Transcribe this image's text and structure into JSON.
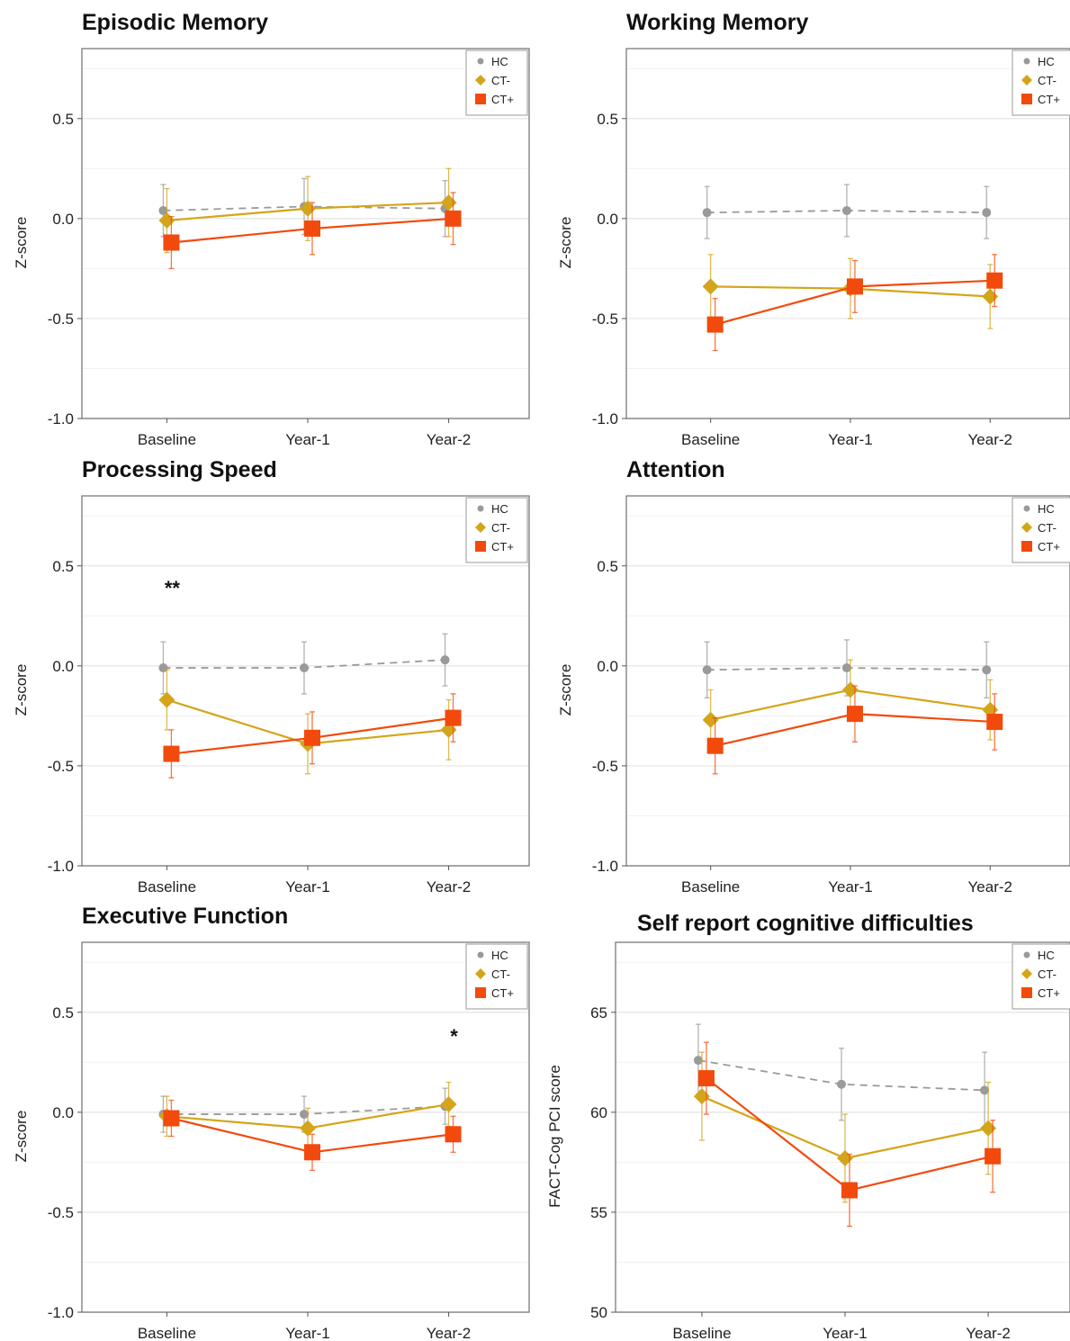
{
  "colors": {
    "HC": "#9a9a9a",
    "CT-": "#d4a51a",
    "CT+": "#f24a0c"
  },
  "legend": [
    "HC",
    "CT-",
    "CT+"
  ],
  "chart_data": [
    {
      "type": "line",
      "title": "Episodic Memory",
      "ylabel": "Z-score",
      "categories": [
        "Baseline",
        "Year-1",
        "Year-2"
      ],
      "ylim": [
        -1.0,
        0.85
      ],
      "yticks": [
        -1.0,
        -0.5,
        0.0,
        0.5
      ],
      "ytick_labels": [
        "-1.0",
        "-0.5",
        "0.0",
        "0.5"
      ],
      "series": [
        {
          "name": "HC",
          "values": [
            0.04,
            0.06,
            0.05
          ],
          "err": [
            0.13,
            0.14,
            0.14
          ]
        },
        {
          "name": "CT-",
          "values": [
            -0.01,
            0.05,
            0.08
          ],
          "err": [
            0.16,
            0.16,
            0.17
          ]
        },
        {
          "name": "CT+",
          "values": [
            -0.12,
            -0.05,
            0.0
          ],
          "err": [
            0.13,
            0.13,
            0.13
          ]
        }
      ],
      "annotations": []
    },
    {
      "type": "line",
      "title": "Working Memory",
      "ylabel": "Z-score",
      "categories": [
        "Baseline",
        "Year-1",
        "Year-2"
      ],
      "ylim": [
        -1.0,
        0.85
      ],
      "yticks": [
        -1.0,
        -0.5,
        0.0,
        0.5
      ],
      "ytick_labels": [
        "-1.0",
        "-0.5",
        "0.0",
        "0.5"
      ],
      "series": [
        {
          "name": "HC",
          "values": [
            0.03,
            0.04,
            0.03
          ],
          "err": [
            0.13,
            0.13,
            0.13
          ]
        },
        {
          "name": "CT-",
          "values": [
            -0.34,
            -0.35,
            -0.39
          ],
          "err": [
            0.16,
            0.15,
            0.16
          ]
        },
        {
          "name": "CT+",
          "values": [
            -0.53,
            -0.34,
            -0.31
          ],
          "err": [
            0.13,
            0.13,
            0.13
          ]
        }
      ],
      "annotations": []
    },
    {
      "type": "line",
      "title": "Processing Speed",
      "ylabel": "Z-score",
      "categories": [
        "Baseline",
        "Year-1",
        "Year-2"
      ],
      "ylim": [
        -1.0,
        0.85
      ],
      "yticks": [
        -1.0,
        -0.5,
        0.0,
        0.5
      ],
      "ytick_labels": [
        "-1.0",
        "-0.5",
        "0.0",
        "0.5"
      ],
      "series": [
        {
          "name": "HC",
          "values": [
            -0.01,
            -0.01,
            0.03
          ],
          "err": [
            0.13,
            0.13,
            0.13
          ]
        },
        {
          "name": "CT-",
          "values": [
            -0.17,
            -0.39,
            -0.32
          ],
          "err": [
            0.15,
            0.15,
            0.15
          ]
        },
        {
          "name": "CT+",
          "values": [
            -0.44,
            -0.36,
            -0.26
          ],
          "err": [
            0.12,
            0.13,
            0.12
          ]
        }
      ],
      "annotations": [
        {
          "text": "**",
          "x": "Baseline",
          "y": 0.41
        }
      ]
    },
    {
      "type": "line",
      "title": "Attention",
      "ylabel": "Z-score",
      "categories": [
        "Baseline",
        "Year-1",
        "Year-2"
      ],
      "ylim": [
        -1.0,
        0.85
      ],
      "yticks": [
        -1.0,
        -0.5,
        0.0,
        0.5
      ],
      "ytick_labels": [
        "-1.0",
        "-0.5",
        "0.0",
        "0.5"
      ],
      "series": [
        {
          "name": "HC",
          "values": [
            -0.02,
            -0.01,
            -0.02
          ],
          "err": [
            0.14,
            0.14,
            0.14
          ]
        },
        {
          "name": "CT-",
          "values": [
            -0.27,
            -0.12,
            -0.22
          ],
          "err": [
            0.15,
            0.15,
            0.15
          ]
        },
        {
          "name": "CT+",
          "values": [
            -0.4,
            -0.24,
            -0.28
          ],
          "err": [
            0.14,
            0.14,
            0.14
          ]
        }
      ],
      "annotations": []
    },
    {
      "type": "line",
      "title": "Executive Function",
      "ylabel": "Z-score",
      "categories": [
        "Baseline",
        "Year-1",
        "Year-2"
      ],
      "ylim": [
        -1.0,
        0.85
      ],
      "yticks": [
        -1.0,
        -0.5,
        0.0,
        0.5
      ],
      "ytick_labels": [
        "-1.0",
        "-0.5",
        "0.0",
        "0.5"
      ],
      "series": [
        {
          "name": "HC",
          "values": [
            -0.01,
            -0.01,
            0.03
          ],
          "err": [
            0.09,
            0.09,
            0.09
          ]
        },
        {
          "name": "CT-",
          "values": [
            -0.02,
            -0.08,
            0.04
          ],
          "err": [
            0.1,
            0.1,
            0.11
          ]
        },
        {
          "name": "CT+",
          "values": [
            -0.03,
            -0.2,
            -0.11
          ],
          "err": [
            0.09,
            0.09,
            0.09
          ]
        }
      ],
      "annotations": [
        {
          "text": "*",
          "x": "Year-2",
          "y": 0.4
        }
      ]
    },
    {
      "type": "line",
      "title": "Self report cognitive difficulties",
      "ylabel": "FACT-Cog PCI score",
      "categories": [
        "Baseline",
        "Year-1",
        "Year-2"
      ],
      "ylim": [
        50,
        68.5
      ],
      "yticks": [
        50,
        55,
        60,
        65
      ],
      "ytick_labels": [
        "50",
        "55",
        "60",
        "65"
      ],
      "series": [
        {
          "name": "HC",
          "values": [
            62.6,
            61.4,
            61.1
          ],
          "err": [
            1.8,
            1.8,
            1.9
          ]
        },
        {
          "name": "CT-",
          "values": [
            60.8,
            57.7,
            59.2
          ],
          "err": [
            2.2,
            2.2,
            2.3
          ]
        },
        {
          "name": "CT+",
          "values": [
            61.7,
            56.1,
            57.8
          ],
          "err": [
            1.8,
            1.8,
            1.8
          ]
        }
      ],
      "annotations": []
    }
  ]
}
